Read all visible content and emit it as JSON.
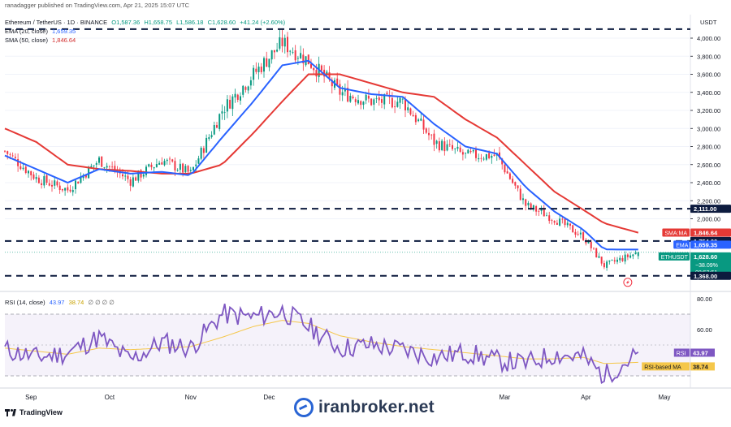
{
  "header": {
    "published": "ranadagger published on TradingView.com, Apr 21, 2025 15:07 UTC",
    "symbol": "Ethereum / TetherUS · 1D · BINANCE",
    "ohlc": {
      "o": "O1,587.36",
      "h": "H1,658.75",
      "l": "L1,586.18",
      "c": "C1,628.60",
      "chg": "+41.24 (+2.60%)"
    },
    "ema_label": "EMA (20, close)",
    "ema_value": "1,659.35",
    "sma_label": "SMA (50, close)",
    "sma_value": "1,846.64",
    "rsi_label": "RSI (14, close)",
    "rsi_value": "43.97",
    "rsi_ma_value": "38.74",
    "rsi_extra": "∅ ∅ ∅ ∅"
  },
  "price_axis": {
    "currency": "USDT",
    "ticks": [
      "4,000.00",
      "3,800.00",
      "3,600.00",
      "3,400.00",
      "3,200.00",
      "3,000.00",
      "2,800.00",
      "2,600.00",
      "2,400.00",
      "2,200.00",
      "2,000.00"
    ]
  },
  "price_tags": [
    {
      "label": "",
      "value": "2,111.00",
      "type": "level"
    },
    {
      "label": "SMA:MA",
      "value": "1,846.64",
      "type": "sma"
    },
    {
      "label": "",
      "value": "1,754.00",
      "type": "level"
    },
    {
      "label": "EMA",
      "value": "1,659.35",
      "type": "ema"
    },
    {
      "label": "ETHUSDT",
      "value": "1,628.60",
      "type": "last",
      "extra1": "−38.09%",
      "extra2": "08:52:51"
    },
    {
      "label": "",
      "value": "1,368.00",
      "type": "level"
    }
  ],
  "rsi_axis": {
    "ticks": [
      "80.00",
      "60.00"
    ]
  },
  "rsi_tags": [
    {
      "label": "RSI",
      "value": "43.97"
    },
    {
      "label": "RSI-based MA",
      "value": "38.74"
    }
  ],
  "time_axis": [
    "Sep",
    "Oct",
    "Nov",
    "Dec",
    "Mar",
    "Apr",
    "May"
  ],
  "branding": {
    "tradingview": "TradingView",
    "watermark": "iranbroker.net"
  },
  "colors": {
    "up": "#089981",
    "down": "#f23645",
    "ema": "#2962ff",
    "sma": "#e53935",
    "rsi": "#7e57c2",
    "rsi_ma": "#f5c74a",
    "level": "#0d1b3e"
  },
  "chart_data": [
    {
      "type": "candlestick",
      "title": "Ethereum / TetherUS · 1D · BINANCE",
      "currency": "USDT",
      "x": [
        "2024-08-22",
        "2024-09-03",
        "2024-09-15",
        "2024-09-27",
        "2024-10-09",
        "2024-10-21",
        "2024-11-01",
        "2024-11-13",
        "2024-11-25",
        "2024-12-06",
        "2024-12-16",
        "2024-12-28",
        "2025-01-09",
        "2025-01-21",
        "2025-02-02",
        "2025-02-14",
        "2025-02-26",
        "2025-03-09",
        "2025-03-20",
        "2025-03-31",
        "2025-04-08",
        "2025-04-21"
      ],
      "close": [
        2750,
        2450,
        2320,
        2650,
        2420,
        2650,
        2500,
        3200,
        3600,
        3950,
        3750,
        3400,
        3300,
        3300,
        2850,
        2700,
        2700,
        2150,
        2000,
        1800,
        1480,
        1628.6
      ],
      "ema20": [
        2700,
        2550,
        2400,
        2550,
        2500,
        2520,
        2480,
        2900,
        3300,
        3700,
        3750,
        3450,
        3380,
        3350,
        3050,
        2800,
        2720,
        2350,
        2080,
        1880,
        1660,
        1659.35
      ],
      "sma50": [
        3000,
        2850,
        2600,
        2550,
        2530,
        2500,
        2500,
        2600,
        2950,
        3300,
        3600,
        3600,
        3500,
        3400,
        3350,
        3100,
        2900,
        2600,
        2300,
        2100,
        1950,
        1846.64
      ],
      "levels": [
        4100,
        2111,
        1754,
        1368
      ],
      "yticks": [
        4000,
        3800,
        3600,
        3400,
        3200,
        3000,
        2800,
        2600,
        2400,
        2200,
        2000
      ],
      "legend_position": "top-left"
    },
    {
      "type": "line",
      "title": "RSI (14, close)",
      "x": [
        "2024-08-22",
        "2024-09-03",
        "2024-09-15",
        "2024-09-27",
        "2024-10-09",
        "2024-10-21",
        "2024-11-01",
        "2024-11-13",
        "2024-11-25",
        "2024-12-06",
        "2024-12-16",
        "2024-12-28",
        "2025-01-09",
        "2025-01-21",
        "2025-02-02",
        "2025-02-14",
        "2025-02-26",
        "2025-03-09",
        "2025-03-20",
        "2025-03-31",
        "2025-04-08",
        "2025-04-21"
      ],
      "series": [
        {
          "name": "RSI",
          "values": [
            47,
            42,
            45,
            55,
            40,
            52,
            48,
            70,
            68,
            72,
            62,
            48,
            50,
            47,
            42,
            45,
            40,
            38,
            44,
            42,
            30,
            43.97
          ]
        },
        {
          "name": "RSI-based MA",
          "values": [
            48,
            46,
            44,
            48,
            47,
            48,
            49,
            55,
            62,
            66,
            64,
            56,
            52,
            49,
            47,
            45,
            43,
            41,
            41,
            42,
            38,
            38.74
          ]
        }
      ],
      "yticks": [
        80,
        60
      ],
      "band": [
        30,
        70
      ]
    }
  ]
}
